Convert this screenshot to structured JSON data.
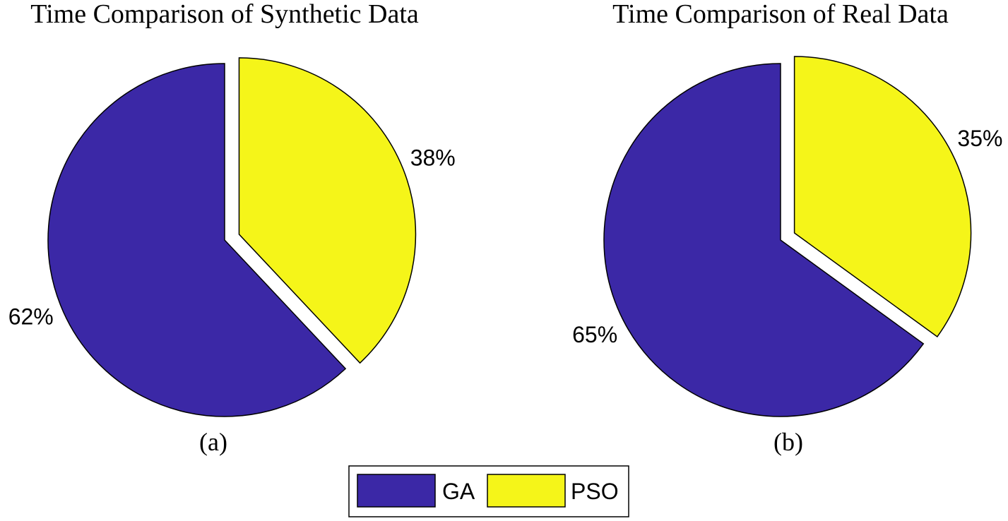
{
  "chart_data": [
    {
      "type": "pie",
      "title": "Time Comparison of Synthetic Data",
      "caption": "(a)",
      "slices": [
        {
          "label": "GA",
          "value": 62,
          "text": "62%",
          "color": "#3b28a6",
          "exploded": false
        },
        {
          "label": "PSO",
          "value": 38,
          "text": "38%",
          "color": "#f5f519",
          "exploded": true
        }
      ]
    },
    {
      "type": "pie",
      "title": "Time Comparison of Real Data",
      "caption": "(b)",
      "slices": [
        {
          "label": "GA",
          "value": 65,
          "text": "65%",
          "color": "#3b28a6",
          "exploded": false
        },
        {
          "label": "PSO",
          "value": 35,
          "text": "35%",
          "color": "#f5f519",
          "exploded": true
        }
      ]
    }
  ],
  "legend": {
    "items": [
      {
        "label": "GA",
        "color": "#3b28a6"
      },
      {
        "label": "PSO",
        "color": "#f5f519"
      }
    ]
  }
}
